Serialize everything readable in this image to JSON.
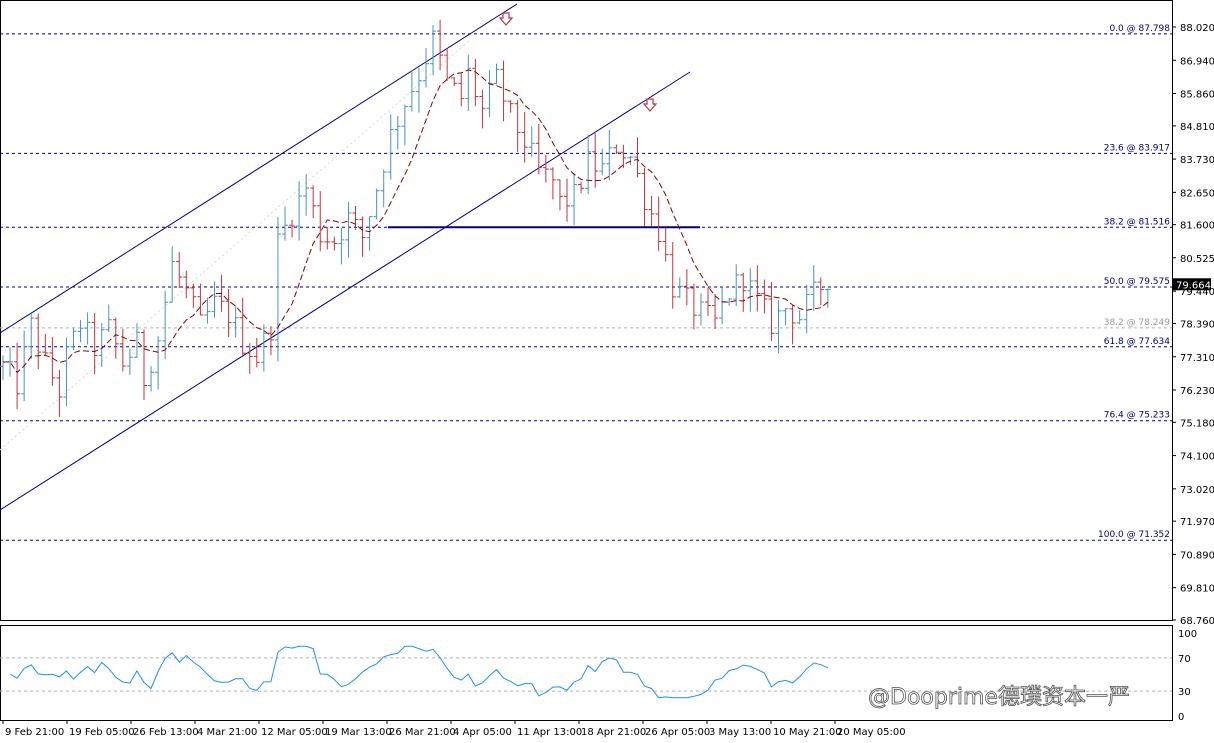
{
  "watermark": "@Dooprime德璞资本一严",
  "colors": {
    "up": "#4a8fc9",
    "down": "#c0343b",
    "ma": "#8b0000",
    "channel": "#00008b",
    "fib": "#00008b",
    "rsi": "#1e90ff",
    "support": "#000080",
    "arrow": "#c0343b"
  },
  "chart_data": [
    {
      "type": "candlestick",
      "price_axis": {
        "ticks": [
          "88.020",
          "86.940",
          "85.860",
          "84.810",
          "83.730",
          "82.650",
          "81.600",
          "80.525",
          "79.440",
          "78.390",
          "77.310",
          "76.230",
          "75.180",
          "74.100",
          "73.020",
          "71.970",
          "70.890",
          "69.810",
          "68.760"
        ],
        "range": [
          68.76,
          88.5
        ]
      },
      "current_price": "79.664",
      "time_axis": [
        "9 Feb 21:00",
        "19 Feb 05:00",
        "26 Feb 13:00",
        "4 Mar 21:00",
        "12 Mar 05:00",
        "19 Mar 13:00",
        "26 Mar 21:00",
        "4 Apr 05:00",
        "11 Apr 13:00",
        "18 Apr 21:00",
        "26 Apr 05:00",
        "3 May 13:00",
        "10 May 21:00",
        "20 May 05:00"
      ],
      "fibonacci_levels": [
        {
          "label": "0.0 @ 87.798",
          "price": 87.798,
          "style": "primary"
        },
        {
          "label": "23.6 @ 83.917",
          "price": 83.917,
          "style": "primary"
        },
        {
          "label": "38.2 @ 81.516",
          "price": 81.516,
          "style": "primary"
        },
        {
          "label": "50.0 @ 79.575",
          "price": 79.575,
          "style": "primary"
        },
        {
          "label": "38.2 @ 78.249",
          "price": 78.249,
          "style": "secondary"
        },
        {
          "label": "61.8 @ 77.634",
          "price": 77.634,
          "style": "primary"
        },
        {
          "label": "76.4 @ 75.233",
          "price": 75.233,
          "style": "primary"
        },
        {
          "label": "100.0 @ 71.352",
          "price": 71.352,
          "style": "primary"
        }
      ],
      "support_line_price": 81.516,
      "trend": [
        [
          0,
          77.0
        ],
        [
          2,
          76.4
        ],
        [
          4,
          78.3
        ],
        [
          6,
          77.1
        ],
        [
          8,
          76.2
        ],
        [
          9,
          77.3
        ],
        [
          11,
          78.4
        ],
        [
          13,
          77.6
        ],
        [
          15,
          78.2
        ],
        [
          17,
          77.1
        ],
        [
          19,
          77.7
        ],
        [
          20,
          76.6
        ],
        [
          22,
          77.9
        ],
        [
          24,
          80.3
        ],
        [
          26,
          79.4
        ],
        [
          28,
          78.3
        ],
        [
          30,
          79.0
        ],
        [
          32,
          78.7
        ],
        [
          34,
          77.8
        ],
        [
          36,
          77.3
        ],
        [
          38,
          78.3
        ],
        [
          39,
          81.0
        ],
        [
          41,
          82.0
        ],
        [
          43,
          82.8
        ],
        [
          45,
          81.3
        ],
        [
          47,
          81.1
        ],
        [
          49,
          81.8
        ],
        [
          51,
          81.2
        ],
        [
          53,
          82.8
        ],
        [
          55,
          84.5
        ],
        [
          57,
          85.6
        ],
        [
          59,
          86.5
        ],
        [
          61,
          87.6
        ],
        [
          63,
          86.2
        ],
        [
          65,
          85.7
        ],
        [
          66,
          86.5
        ],
        [
          68,
          85.3
        ],
        [
          70,
          86.3
        ],
        [
          72,
          85.1
        ],
        [
          74,
          84.3
        ],
        [
          76,
          83.3
        ],
        [
          78,
          83.0
        ],
        [
          79,
          82.3
        ],
        [
          81,
          82.5
        ],
        [
          83,
          83.6
        ],
        [
          85,
          83.4
        ],
        [
          87,
          84.2
        ],
        [
          89,
          83.8
        ],
        [
          91,
          82.5
        ],
        [
          93,
          81.4
        ],
        [
          95,
          79.6
        ],
        [
          97,
          79.1
        ],
        [
          99,
          78.7
        ],
        [
          101,
          78.4
        ],
        [
          103,
          79.4
        ],
        [
          105,
          79.9
        ],
        [
          107,
          79.1
        ],
        [
          109,
          78.4
        ],
        [
          111,
          78.9
        ],
        [
          113,
          78.6
        ],
        [
          115,
          79.3
        ],
        [
          117,
          79.9
        ]
      ],
      "moving_average": "dashed dark-red line trailing price",
      "annotations": [
        "down-arrow near 4 Apr top",
        "down-arrow near 26 Apr lower high"
      ]
    },
    {
      "type": "line",
      "name": "oscillator",
      "ticks": [
        "100",
        "70",
        "30",
        "0"
      ],
      "range": [
        0,
        100
      ]
    }
  ]
}
